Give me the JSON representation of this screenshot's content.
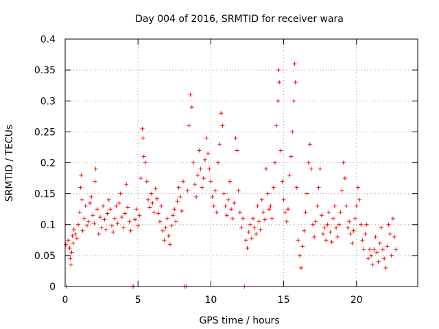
{
  "chart_data": {
    "type": "scatter",
    "title": "Day 004 of 2016, SRMTID for receiver wara",
    "xlabel": "GPS time / hours",
    "ylabel": "SRMTID / TECUs",
    "xlim": [
      0,
      24.2
    ],
    "ylim": [
      0,
      0.4
    ],
    "xticks": [
      0,
      5,
      10,
      15,
      20
    ],
    "xtick_labels": [
      "0",
      "5",
      "10",
      "15",
      "20"
    ],
    "yticks": [
      0,
      0.05,
      0.1,
      0.15,
      0.2,
      0.25,
      0.3,
      0.35,
      0.4
    ],
    "ytick_labels": [
      "0",
      "0.05",
      "0.1",
      "0.15",
      "0.2",
      "0.25",
      "0.3",
      "0.35",
      "0.4"
    ],
    "grid": true,
    "marker": "+",
    "series": [
      {
        "name": "SRMTID",
        "color": "#ff0000",
        "points": [
          [
            0.05,
            0.068
          ],
          [
            0.1,
            0.0
          ],
          [
            0.2,
            0.075
          ],
          [
            0.3,
            0.062
          ],
          [
            0.35,
            0.045
          ],
          [
            0.4,
            0.035
          ],
          [
            0.45,
            0.055
          ],
          [
            0.5,
            0.082
          ],
          [
            0.55,
            0.07
          ],
          [
            0.6,
            0.092
          ],
          [
            0.7,
            0.085
          ],
          [
            0.8,
            0.078
          ],
          [
            0.9,
            0.1
          ],
          [
            1.0,
            0.12
          ],
          [
            1.05,
            0.16
          ],
          [
            1.1,
            0.18
          ],
          [
            1.15,
            0.14
          ],
          [
            1.2,
            0.09
          ],
          [
            1.3,
            0.11
          ],
          [
            1.4,
            0.13
          ],
          [
            1.5,
            0.098
          ],
          [
            1.6,
            0.105
          ],
          [
            1.7,
            0.135
          ],
          [
            1.8,
            0.145
          ],
          [
            1.9,
            0.115
          ],
          [
            2.0,
            0.102
          ],
          [
            2.05,
            0.17
          ],
          [
            2.1,
            0.19
          ],
          [
            2.2,
            0.125
          ],
          [
            2.3,
            0.085
          ],
          [
            2.4,
            0.112
          ],
          [
            2.5,
            0.095
          ],
          [
            2.6,
            0.13
          ],
          [
            2.7,
            0.108
          ],
          [
            2.8,
            0.092
          ],
          [
            2.9,
            0.118
          ],
          [
            3.0,
            0.14
          ],
          [
            3.1,
            0.125
          ],
          [
            3.2,
            0.098
          ],
          [
            3.3,
            0.088
          ],
          [
            3.4,
            0.11
          ],
          [
            3.5,
            0.13
          ],
          [
            3.6,
            0.102
          ],
          [
            3.7,
            0.135
          ],
          [
            3.8,
            0.15
          ],
          [
            3.9,
            0.112
          ],
          [
            4.0,
            0.095
          ],
          [
            4.1,
            0.118
          ],
          [
            4.2,
            0.165
          ],
          [
            4.3,
            0.128
          ],
          [
            4.4,
            0.105
          ],
          [
            4.5,
            0.09
          ],
          [
            4.6,
            0.0
          ],
          [
            4.7,
            0.0
          ],
          [
            4.8,
            0.108
          ],
          [
            4.9,
            0.125
          ],
          [
            5.0,
            0.098
          ],
          [
            5.1,
            0.115
          ],
          [
            5.2,
            0.175
          ],
          [
            5.3,
            0.255
          ],
          [
            5.35,
            0.24
          ],
          [
            5.4,
            0.21
          ],
          [
            5.5,
            0.2
          ],
          [
            5.6,
            0.17
          ],
          [
            5.7,
            0.14
          ],
          [
            5.8,
            0.128
          ],
          [
            5.9,
            0.15
          ],
          [
            6.0,
            0.135
          ],
          [
            6.1,
            0.12
          ],
          [
            6.2,
            0.158
          ],
          [
            6.3,
            0.142
          ],
          [
            6.4,
            0.118
          ],
          [
            6.5,
            0.105
          ],
          [
            6.6,
            0.13
          ],
          [
            6.7,
            0.09
          ],
          [
            6.8,
            0.075
          ],
          [
            6.9,
            0.095
          ],
          [
            7.0,
            0.11
          ],
          [
            7.1,
            0.082
          ],
          [
            7.2,
            0.068
          ],
          [
            7.3,
            0.098
          ],
          [
            7.4,
            0.115
          ],
          [
            7.5,
            0.125
          ],
          [
            7.6,
            0.105
          ],
          [
            7.7,
            0.138
          ],
          [
            7.8,
            0.16
          ],
          [
            7.9,
            0.145
          ],
          [
            8.0,
            0.122
          ],
          [
            8.1,
            0.17
          ],
          [
            8.2,
            0.0
          ],
          [
            8.3,
            0.0
          ],
          [
            8.4,
            0.155
          ],
          [
            8.5,
            0.26
          ],
          [
            8.6,
            0.31
          ],
          [
            8.7,
            0.29
          ],
          [
            8.8,
            0.2
          ],
          [
            8.9,
            0.165
          ],
          [
            9.0,
            0.145
          ],
          [
            9.1,
            0.18
          ],
          [
            9.2,
            0.22
          ],
          [
            9.3,
            0.19
          ],
          [
            9.4,
            0.16
          ],
          [
            9.5,
            0.175
          ],
          [
            9.6,
            0.205
          ],
          [
            9.7,
            0.24
          ],
          [
            9.8,
            0.215
          ],
          [
            9.9,
            0.19
          ],
          [
            10.0,
            0.17
          ],
          [
            10.1,
            0.145
          ],
          [
            10.2,
            0.13
          ],
          [
            10.3,
            0.155
          ],
          [
            10.4,
            0.12
          ],
          [
            10.5,
            0.2
          ],
          [
            10.6,
            0.23
          ],
          [
            10.7,
            0.28
          ],
          [
            10.8,
            0.26
          ],
          [
            10.9,
            0.15
          ],
          [
            11.0,
            0.13
          ],
          [
            11.1,
            0.115
          ],
          [
            11.2,
            0.14
          ],
          [
            11.3,
            0.17
          ],
          [
            11.4,
            0.125
          ],
          [
            11.5,
            0.11
          ],
          [
            11.6,
            0.135
          ],
          [
            11.7,
            0.24
          ],
          [
            11.8,
            0.22
          ],
          [
            11.9,
            0.155
          ],
          [
            12.0,
            0.12
          ],
          [
            12.1,
            0.095
          ],
          [
            12.2,
            0.11
          ],
          [
            12.3,
            0.0
          ],
          [
            12.4,
            0.075
          ],
          [
            12.5,
            0.062
          ],
          [
            12.6,
            0.088
          ],
          [
            12.7,
            0.1
          ],
          [
            12.8,
            0.078
          ],
          [
            12.9,
            0.11
          ],
          [
            13.0,
            0.095
          ],
          [
            13.1,
            0.085
          ],
          [
            13.2,
            0.13
          ],
          [
            13.3,
            0.105
          ],
          [
            13.4,
            0.092
          ],
          [
            13.5,
            0.14
          ],
          [
            13.6,
            0.12
          ],
          [
            13.7,
            0.108
          ],
          [
            13.8,
            0.19
          ],
          [
            13.9,
            0.15
          ],
          [
            14.0,
            0.125
          ],
          [
            14.1,
            0.13
          ],
          [
            14.2,
            0.11
          ],
          [
            14.3,
            0.16
          ],
          [
            14.4,
            0.2
          ],
          [
            14.5,
            0.26
          ],
          [
            14.6,
            0.3
          ],
          [
            14.65,
            0.35
          ],
          [
            14.7,
            0.33
          ],
          [
            14.8,
            0.22
          ],
          [
            14.9,
            0.17
          ],
          [
            15.0,
            0.14
          ],
          [
            15.1,
            0.12
          ],
          [
            15.2,
            0.105
          ],
          [
            15.3,
            0.125
          ],
          [
            15.4,
            0.18
          ],
          [
            15.5,
            0.21
          ],
          [
            15.6,
            0.25
          ],
          [
            15.7,
            0.3
          ],
          [
            15.75,
            0.36
          ],
          [
            15.8,
            0.33
          ],
          [
            15.9,
            0.16
          ],
          [
            16.0,
            0.075
          ],
          [
            16.1,
            0.05
          ],
          [
            16.2,
            0.03
          ],
          [
            16.3,
            0.065
          ],
          [
            16.4,
            0.09
          ],
          [
            16.5,
            0.12
          ],
          [
            16.6,
            0.15
          ],
          [
            16.7,
            0.2
          ],
          [
            16.8,
            0.23
          ],
          [
            16.9,
            0.19
          ],
          [
            17.0,
            0.1
          ],
          [
            17.1,
            0.08
          ],
          [
            17.2,
            0.105
          ],
          [
            17.3,
            0.13
          ],
          [
            17.4,
            0.16
          ],
          [
            17.5,
            0.19
          ],
          [
            17.6,
            0.115
          ],
          [
            17.7,
            0.085
          ],
          [
            17.8,
            0.095
          ],
          [
            17.9,
            0.075
          ],
          [
            18.0,
            0.1
          ],
          [
            18.1,
            0.12
          ],
          [
            18.2,
            0.088
          ],
          [
            18.3,
            0.072
          ],
          [
            18.4,
            0.11
          ],
          [
            18.5,
            0.13
          ],
          [
            18.6,
            0.095
          ],
          [
            18.7,
            0.08
          ],
          [
            18.8,
            0.1
          ],
          [
            18.9,
            0.12
          ],
          [
            19.0,
            0.155
          ],
          [
            19.1,
            0.2
          ],
          [
            19.2,
            0.175
          ],
          [
            19.3,
            0.13
          ],
          [
            19.4,
            0.095
          ],
          [
            19.5,
            0.105
          ],
          [
            19.6,
            0.085
          ],
          [
            19.7,
            0.07
          ],
          [
            19.8,
            0.09
          ],
          [
            19.9,
            0.11
          ],
          [
            20.0,
            0.13
          ],
          [
            20.1,
            0.16
          ],
          [
            20.2,
            0.14
          ],
          [
            20.3,
            0.1
          ],
          [
            20.4,
            0.075
          ],
          [
            20.5,
            0.06
          ],
          [
            20.6,
            0.085
          ],
          [
            20.7,
            0.1
          ],
          [
            20.8,
            0.045
          ],
          [
            20.9,
            0.06
          ],
          [
            21.0,
            0.05
          ],
          [
            21.1,
            0.035
          ],
          [
            21.2,
            0.06
          ],
          [
            21.3,
            0.08
          ],
          [
            21.4,
            0.055
          ],
          [
            21.5,
            0.04
          ],
          [
            21.6,
            0.07
          ],
          [
            21.7,
            0.095
          ],
          [
            21.8,
            0.06
          ],
          [
            21.9,
            0.045
          ],
          [
            22.0,
            0.03
          ],
          [
            22.1,
            0.065
          ],
          [
            22.2,
            0.1
          ],
          [
            22.3,
            0.085
          ],
          [
            22.4,
            0.05
          ],
          [
            22.5,
            0.11
          ],
          [
            22.6,
            0.08
          ],
          [
            22.7,
            0.06
          ]
        ]
      }
    ]
  }
}
